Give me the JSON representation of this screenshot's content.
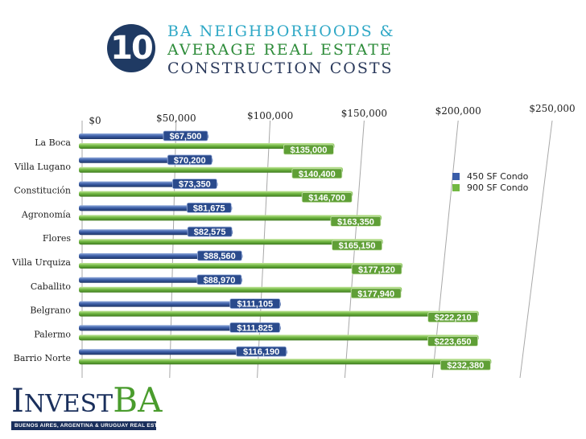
{
  "badge": {
    "number": "10"
  },
  "title": {
    "line1": "BA NEIGHBORHOODS &",
    "line2": "AVERAGE REAL ESTATE",
    "line3": "CONSTRUCTION COSTS"
  },
  "logo": {
    "first": "I",
    "rest": "NVEST",
    "ba": "BA",
    "subtitle": "BUENOS AIRES, ARGENTINA & URUGUAY REAL ESTATE"
  },
  "colors": {
    "series1": "#3a5da8",
    "series2": "#72b843",
    "title_navy": "#1f3a63"
  },
  "chart_data": {
    "type": "bar",
    "orientation": "horizontal",
    "categories": [
      "La Boca",
      "Villa Lugano",
      "Constitución",
      "Agronomía",
      "Flores",
      "Villa Urquiza",
      "Caballito",
      "Belgrano",
      "Palermo",
      "Barrio Norte"
    ],
    "series": [
      {
        "name": "450 SF Condo",
        "values": [
          67500,
          70200,
          73350,
          81675,
          82575,
          88560,
          88970,
          111105,
          111825,
          116190
        ],
        "labels": [
          "$67,500",
          "$70,200",
          "$73,350",
          "$81,675",
          "$82,575",
          "$88,560",
          "$88,970",
          "$111,105",
          "$111,825",
          "$116,190"
        ]
      },
      {
        "name": "900 SF Condo",
        "values": [
          135000,
          140400,
          146700,
          163350,
          165150,
          177120,
          177940,
          222210,
          223650,
          232380
        ],
        "labels": [
          "$135,000",
          "$140,400",
          "$146,700",
          "$163,350",
          "$165,150",
          "$177,120",
          "$177,940",
          "$222,210",
          "$223,650",
          "$232,380"
        ]
      }
    ],
    "xticks": [
      0,
      50000,
      100000,
      150000,
      200000,
      250000
    ],
    "xtick_labels": [
      "$0",
      "$50,000",
      "$100,000",
      "$150,000",
      "$200,000",
      "$250,000"
    ],
    "xlim": [
      0,
      250000
    ],
    "grid": true,
    "legend_position": "right"
  }
}
